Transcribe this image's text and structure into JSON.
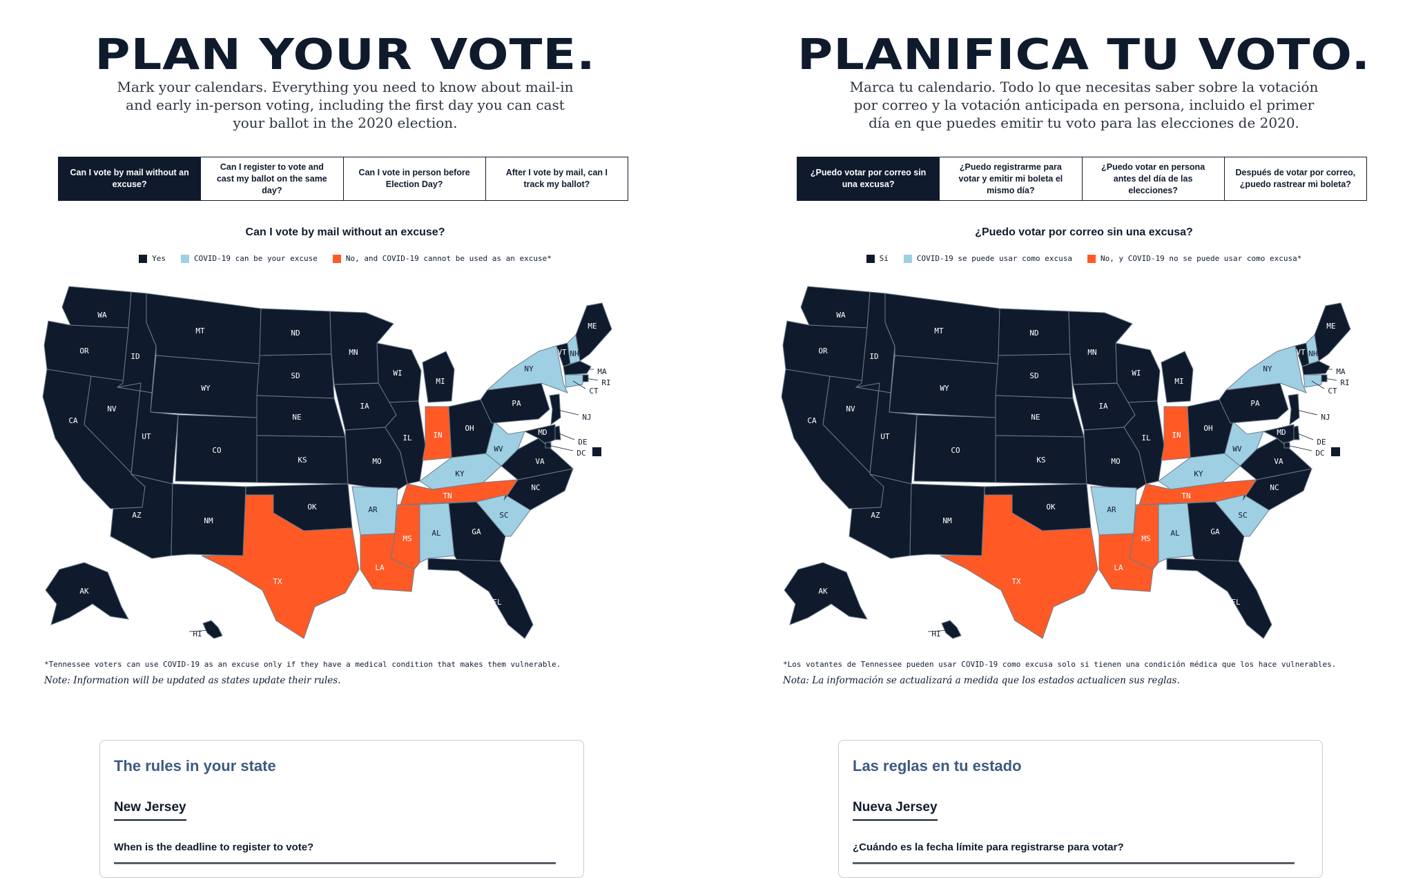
{
  "colors": {
    "yes": "#0f1b2d",
    "covid": "#9fcfe3",
    "no": "#ff5a26",
    "border": "#6c7b8c"
  },
  "panels": [
    {
      "lang": "en",
      "title": "PLAN YOUR VOTE.",
      "intro": "Mark your calendars. Everything you need to know about mail-in and early in-person voting, including the first day you can cast your ballot in the 2020 election.",
      "tabs": [
        {
          "label": "Can I vote by mail without an excuse?",
          "active": true
        },
        {
          "label": "Can I register to vote and cast my ballot on the same day?",
          "active": false
        },
        {
          "label": "Can I vote in person before Election Day?",
          "active": false
        },
        {
          "label": "After I vote by mail, can I track my ballot?",
          "active": false
        }
      ],
      "map_question": "Can I vote by mail without an excuse?",
      "legend": {
        "yes": "Yes",
        "covid": "COVID-19 can be your excuse",
        "no": "No, and COVID-19 cannot be used as an excuse*"
      },
      "footnote": "*Tennessee voters can use COVID-19 as an excuse only if they have a medical condition that makes them vulnerable.",
      "note": "Note: Information will be updated as states update their rules.",
      "rules": {
        "title": "The rules in your state",
        "state": "New Jersey",
        "question": "When is the deadline to register to vote?"
      }
    },
    {
      "lang": "es",
      "title": "PLANIFICA TU VOTO.",
      "intro": "Marca tu calendario. Todo lo que necesitas saber sobre la votación por correo y la votación anticipada en persona, incluido el primer día en que puedes emitir tu voto para las elecciones de 2020.",
      "tabs": [
        {
          "label": "¿Puedo votar por correo sin una excusa?",
          "active": true
        },
        {
          "label": "¿Puedo registrarme para votar y emitir mi boleta el mismo día?",
          "active": false
        },
        {
          "label": "¿Puedo votar en persona antes del día de las elecciones?",
          "active": false
        },
        {
          "label": "Después de votar por correo, ¿puedo rastrear mi boleta?",
          "active": false
        }
      ],
      "map_question": "¿Puedo votar por correo sin una excusa?",
      "legend": {
        "yes": "Sí",
        "covid": "COVID-19 se puede usar como excusa",
        "no": "No, y COVID-19 no se puede usar como excusa*"
      },
      "footnote": "*Los votantes de Tennessee pueden usar COVID-19 como excusa solo si tienen una condición médica que los hace vulnerables.",
      "note": "Nota: La información se actualizará a medida que los estados actualicen sus reglas.",
      "rules": {
        "title": "Las reglas en tu estado",
        "state": "Nueva Jersey",
        "question": "¿Cuándo es la fecha límite para registrarse para votar?"
      }
    }
  ],
  "states": [
    {
      "abbr": "WA",
      "status": "yes"
    },
    {
      "abbr": "OR",
      "status": "yes"
    },
    {
      "abbr": "CA",
      "status": "yes"
    },
    {
      "abbr": "NV",
      "status": "yes"
    },
    {
      "abbr": "ID",
      "status": "yes"
    },
    {
      "abbr": "MT",
      "status": "yes"
    },
    {
      "abbr": "WY",
      "status": "yes"
    },
    {
      "abbr": "UT",
      "status": "yes"
    },
    {
      "abbr": "AZ",
      "status": "yes"
    },
    {
      "abbr": "CO",
      "status": "yes"
    },
    {
      "abbr": "NM",
      "status": "yes"
    },
    {
      "abbr": "ND",
      "status": "yes"
    },
    {
      "abbr": "SD",
      "status": "yes"
    },
    {
      "abbr": "NE",
      "status": "yes"
    },
    {
      "abbr": "KS",
      "status": "yes"
    },
    {
      "abbr": "OK",
      "status": "yes"
    },
    {
      "abbr": "TX",
      "status": "no"
    },
    {
      "abbr": "MN",
      "status": "yes"
    },
    {
      "abbr": "IA",
      "status": "yes"
    },
    {
      "abbr": "MO",
      "status": "yes"
    },
    {
      "abbr": "AR",
      "status": "covid"
    },
    {
      "abbr": "LA",
      "status": "no"
    },
    {
      "abbr": "WI",
      "status": "yes"
    },
    {
      "abbr": "IL",
      "status": "yes"
    },
    {
      "abbr": "MI",
      "status": "yes"
    },
    {
      "abbr": "IN",
      "status": "no"
    },
    {
      "abbr": "OH",
      "status": "yes"
    },
    {
      "abbr": "KY",
      "status": "covid"
    },
    {
      "abbr": "TN",
      "status": "no"
    },
    {
      "abbr": "MS",
      "status": "no"
    },
    {
      "abbr": "AL",
      "status": "covid"
    },
    {
      "abbr": "GA",
      "status": "yes"
    },
    {
      "abbr": "FL",
      "status": "yes"
    },
    {
      "abbr": "SC",
      "status": "covid"
    },
    {
      "abbr": "NC",
      "status": "yes"
    },
    {
      "abbr": "VA",
      "status": "yes"
    },
    {
      "abbr": "WV",
      "status": "covid"
    },
    {
      "abbr": "PA",
      "status": "yes"
    },
    {
      "abbr": "NY",
      "status": "covid"
    },
    {
      "abbr": "VT",
      "status": "yes"
    },
    {
      "abbr": "NH",
      "status": "covid"
    },
    {
      "abbr": "ME",
      "status": "yes"
    },
    {
      "abbr": "MA",
      "status": "yes"
    },
    {
      "abbr": "RI",
      "status": "yes"
    },
    {
      "abbr": "CT",
      "status": "covid"
    },
    {
      "abbr": "NJ",
      "status": "yes"
    },
    {
      "abbr": "DE",
      "status": "yes"
    },
    {
      "abbr": "MD",
      "status": "yes"
    },
    {
      "abbr": "DC",
      "status": "yes"
    },
    {
      "abbr": "AK",
      "status": "yes"
    },
    {
      "abbr": "HI",
      "status": "yes"
    }
  ]
}
